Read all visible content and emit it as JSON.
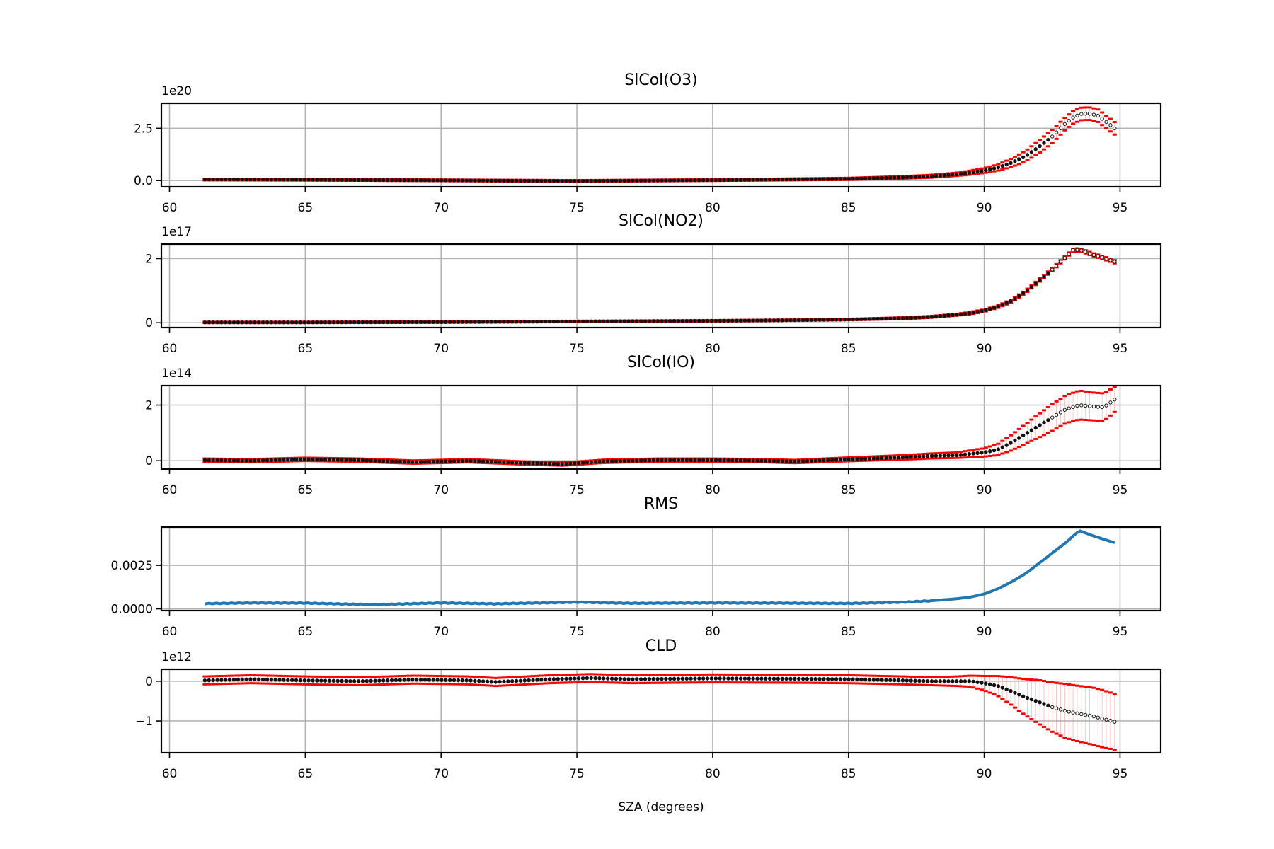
{
  "chart_data": [
    {
      "type": "scatter",
      "title": "SlCol(O3)",
      "offset_label": "1e20",
      "scale": 1e+20,
      "ylim": [
        -0.3,
        3.7
      ],
      "yticks": [
        0.0,
        2.5
      ],
      "ytick_labels": [
        "0.0",
        "2.5"
      ],
      "xlim": [
        59.7,
        96.5
      ],
      "xticks": [
        60,
        65,
        70,
        75,
        80,
        85,
        90,
        95
      ],
      "xtick_labels": [
        "60",
        "65",
        "70",
        "75",
        "80",
        "85",
        "90",
        "95"
      ],
      "grid": true,
      "x": [
        61.3,
        65,
        70,
        75,
        80,
        85,
        87,
        88,
        89,
        89.5,
        90,
        90.5,
        91,
        91.5,
        92,
        92.5,
        93,
        93.3,
        93.6,
        93.9,
        94.2,
        94.5,
        94.8
      ],
      "y": [
        0.05,
        0.04,
        0.01,
        -0.02,
        0.02,
        0.08,
        0.15,
        0.2,
        0.3,
        0.38,
        0.48,
        0.62,
        0.85,
        1.15,
        1.6,
        2.1,
        2.75,
        3.05,
        3.2,
        3.2,
        3.1,
        2.8,
        2.5
      ],
      "err": [
        0.04,
        0.04,
        0.04,
        0.04,
        0.04,
        0.05,
        0.06,
        0.07,
        0.08,
        0.1,
        0.12,
        0.15,
        0.2,
        0.25,
        0.3,
        0.32,
        0.3,
        0.3,
        0.3,
        0.3,
        0.3,
        0.3,
        0.3
      ]
    },
    {
      "type": "scatter",
      "title": "SlCol(NO2)",
      "offset_label": "1e17",
      "scale": 1e+17,
      "ylim": [
        -0.15,
        2.45
      ],
      "yticks": [
        0,
        2
      ],
      "ytick_labels": [
        "0",
        "2"
      ],
      "xlim": [
        59.7,
        96.5
      ],
      "xticks": [
        60,
        65,
        70,
        75,
        80,
        85,
        90,
        95
      ],
      "xtick_labels": [
        "60",
        "65",
        "70",
        "75",
        "80",
        "85",
        "90",
        "95"
      ],
      "grid": true,
      "x": [
        61.3,
        65,
        70,
        75,
        80,
        83,
        85,
        87,
        88,
        89,
        89.5,
        90,
        90.5,
        91,
        91.5,
        92,
        92.5,
        93,
        93.3,
        93.6,
        94,
        94.4,
        94.8
      ],
      "y": [
        0.01,
        0.01,
        0.02,
        0.04,
        0.06,
        0.08,
        0.1,
        0.14,
        0.18,
        0.25,
        0.3,
        0.38,
        0.5,
        0.68,
        0.95,
        1.3,
        1.65,
        2.05,
        2.28,
        2.25,
        2.12,
        2.02,
        1.9
      ],
      "err": [
        0.02,
        0.02,
        0.02,
        0.02,
        0.02,
        0.02,
        0.02,
        0.03,
        0.03,
        0.03,
        0.04,
        0.04,
        0.04,
        0.05,
        0.05,
        0.05,
        0.05,
        0.05,
        0.05,
        0.05,
        0.05,
        0.05,
        0.05
      ]
    },
    {
      "type": "scatter",
      "title": "SlCol(IO)",
      "offset_label": "1e14",
      "scale": 100000000000000.0,
      "ylim": [
        -0.3,
        2.7
      ],
      "yticks": [
        0,
        2
      ],
      "ytick_labels": [
        "0",
        "2"
      ],
      "xlim": [
        59.7,
        96.5
      ],
      "xticks": [
        60,
        65,
        70,
        75,
        80,
        85,
        90,
        95
      ],
      "xtick_labels": [
        "60",
        "65",
        "70",
        "75",
        "80",
        "85",
        "90",
        "95"
      ],
      "grid": true,
      "x": [
        61.3,
        63,
        65,
        67,
        69,
        71,
        73,
        74.5,
        76,
        78,
        80,
        82,
        83,
        85,
        87,
        88,
        89,
        90,
        90.5,
        91,
        91.5,
        92,
        92.5,
        93,
        93.5,
        94,
        94.4,
        94.8
      ],
      "y": [
        0.02,
        0.0,
        0.05,
        0.02,
        -0.05,
        0.0,
        -0.08,
        -0.12,
        -0.02,
        0.02,
        0.02,
        0.0,
        -0.03,
        0.05,
        0.12,
        0.17,
        0.2,
        0.3,
        0.4,
        0.65,
        0.95,
        1.25,
        1.55,
        1.85,
        2.0,
        1.95,
        1.92,
        2.2
      ],
      "err": [
        0.06,
        0.06,
        0.06,
        0.06,
        0.06,
        0.06,
        0.06,
        0.06,
        0.06,
        0.06,
        0.06,
        0.06,
        0.06,
        0.07,
        0.08,
        0.09,
        0.1,
        0.15,
        0.2,
        0.28,
        0.35,
        0.42,
        0.48,
        0.5,
        0.52,
        0.5,
        0.5,
        0.45
      ]
    },
    {
      "type": "line",
      "title": "RMS",
      "offset_label": "",
      "scale": 1,
      "ylim": [
        -0.0001,
        0.0047
      ],
      "yticks": [
        0.0,
        0.0025
      ],
      "ytick_labels": [
        "0.0000",
        "0.0025"
      ],
      "xlim": [
        59.7,
        96.5
      ],
      "xticks": [
        60,
        65,
        70,
        75,
        80,
        85,
        90,
        95
      ],
      "xtick_labels": [
        "60",
        "65",
        "70",
        "75",
        "80",
        "85",
        "90",
        "95"
      ],
      "grid": true,
      "color": "#1f77b4",
      "x": [
        61.3,
        63,
        65,
        67.5,
        70,
        72,
        75,
        77,
        80,
        82.5,
        85,
        87,
        88,
        89,
        89.5,
        90,
        90.5,
        91,
        91.5,
        92,
        92.5,
        93,
        93.5,
        94,
        94.4,
        94.8
      ],
      "y": [
        0.0003,
        0.00034,
        0.00033,
        0.00024,
        0.00034,
        0.00029,
        0.00038,
        0.00032,
        0.00034,
        0.00033,
        0.00031,
        0.00038,
        0.00046,
        0.00058,
        0.00068,
        0.00085,
        0.00115,
        0.00155,
        0.002,
        0.0026,
        0.0032,
        0.0038,
        0.0045,
        0.0042,
        0.004,
        0.0038
      ]
    },
    {
      "type": "scatter",
      "title": "CLD",
      "offset_label": "1e12",
      "scale": 1000000000000.0,
      "ylim": [
        -1.8,
        0.3
      ],
      "yticks": [
        -1,
        0
      ],
      "ytick_labels": [
        "−1",
        "0"
      ],
      "xlim": [
        59.7,
        96.5
      ],
      "xticks": [
        60,
        65,
        70,
        75,
        80,
        85,
        90,
        95
      ],
      "xtick_labels": [
        "60",
        "65",
        "70",
        "75",
        "80",
        "85",
        "90",
        "95"
      ],
      "grid": true,
      "xlabel": "SZA (degrees)",
      "x": [
        61.3,
        63,
        65,
        67,
        69,
        71,
        72,
        74,
        75.5,
        77,
        80,
        83,
        85,
        87,
        88,
        89,
        89.5,
        90,
        90.5,
        91,
        91.5,
        92,
        92.5,
        93,
        93.5,
        94,
        94.4,
        94.8
      ],
      "y": [
        0.02,
        0.05,
        0.02,
        0.0,
        0.04,
        0.02,
        -0.02,
        0.05,
        0.08,
        0.05,
        0.07,
        0.06,
        0.05,
        0.02,
        0.0,
        0.0,
        0.0,
        -0.05,
        -0.12,
        -0.25,
        -0.4,
        -0.52,
        -0.65,
        -0.75,
        -0.82,
        -0.88,
        -0.95,
        -1.02
      ],
      "err": [
        0.1,
        0.1,
        0.1,
        0.1,
        0.1,
        0.1,
        0.1,
        0.1,
        0.1,
        0.1,
        0.1,
        0.1,
        0.1,
        0.1,
        0.1,
        0.12,
        0.14,
        0.18,
        0.25,
        0.35,
        0.45,
        0.55,
        0.62,
        0.68,
        0.7,
        0.72,
        0.72,
        0.7
      ]
    }
  ]
}
